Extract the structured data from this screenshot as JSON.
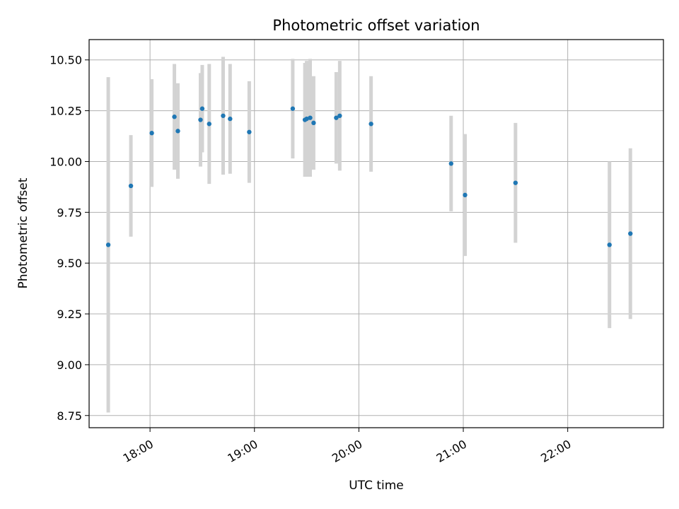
{
  "chart_data": {
    "type": "scatter",
    "title": "Photometric offset variation",
    "xlabel": "UTC time",
    "ylabel": "Photometric offset",
    "xlim": [
      "17:25",
      "22:55"
    ],
    "ylim": [
      8.69,
      10.6
    ],
    "x_ticks": [
      "18:00",
      "19:00",
      "20:00",
      "21:00",
      "22:00"
    ],
    "y_ticks": [
      8.75,
      9.0,
      9.25,
      9.5,
      9.75,
      10.0,
      10.25,
      10.5
    ],
    "y_tick_labels": [
      "8.75",
      "9.00",
      "9.25",
      "9.50",
      "9.75",
      "10.00",
      "10.25",
      "10.50"
    ],
    "grid": true,
    "point_color": "#1f77b4",
    "error_bar_color": "#d3d3d3",
    "points": [
      {
        "x": "17:36",
        "y": 9.59,
        "err": 0.825
      },
      {
        "x": "17:49",
        "y": 9.88,
        "err": 0.25
      },
      {
        "x": "18:01",
        "y": 10.14,
        "err": 0.265
      },
      {
        "x": "18:14",
        "y": 10.22,
        "err": 0.26
      },
      {
        "x": "18:16",
        "y": 10.15,
        "err": 0.235
      },
      {
        "x": "18:29",
        "y": 10.205,
        "err": 0.23
      },
      {
        "x": "18:30",
        "y": 10.26,
        "err": 0.215
      },
      {
        "x": "18:34",
        "y": 10.185,
        "err": 0.295
      },
      {
        "x": "18:42",
        "y": 10.225,
        "err": 0.29
      },
      {
        "x": "18:46",
        "y": 10.21,
        "err": 0.27
      },
      {
        "x": "18:57",
        "y": 10.145,
        "err": 0.25
      },
      {
        "x": "19:22",
        "y": 10.26,
        "err": 0.245
      },
      {
        "x": "19:29",
        "y": 10.205,
        "err": 0.28
      },
      {
        "x": "19:30",
        "y": 10.21,
        "err": 0.285
      },
      {
        "x": "19:32",
        "y": 10.215,
        "err": 0.29
      },
      {
        "x": "19:34",
        "y": 10.19,
        "err": 0.23
      },
      {
        "x": "19:47",
        "y": 10.215,
        "err": 0.225
      },
      {
        "x": "19:49",
        "y": 10.225,
        "err": 0.27
      },
      {
        "x": "20:07",
        "y": 10.185,
        "err": 0.235
      },
      {
        "x": "20:53",
        "y": 9.99,
        "err": 0.235
      },
      {
        "x": "21:01",
        "y": 9.835,
        "err": 0.3
      },
      {
        "x": "21:30",
        "y": 9.895,
        "err": 0.295
      },
      {
        "x": "22:24",
        "y": 9.59,
        "err": 0.41
      },
      {
        "x": "22:36",
        "y": 9.645,
        "err": 0.42
      }
    ]
  }
}
